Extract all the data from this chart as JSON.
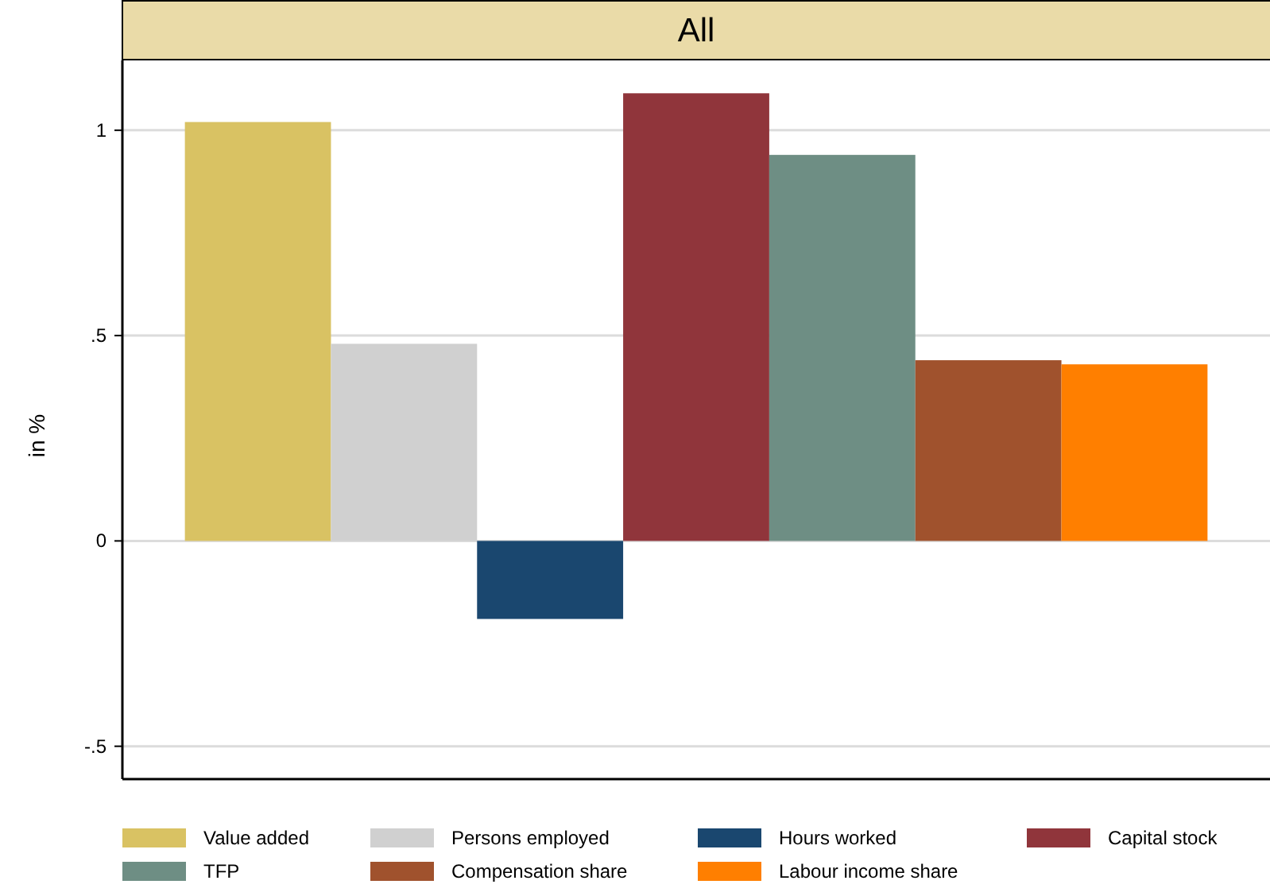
{
  "chart_data": {
    "type": "bar",
    "title": "All",
    "ylabel": "in %",
    "categories": [
      null
    ],
    "series": [
      {
        "name": "Value added",
        "color": "#d9c263",
        "values": [
          1.02
        ]
      },
      {
        "name": "Persons employed",
        "color": "#d0d0d0",
        "values": [
          0.48
        ]
      },
      {
        "name": "Hours worked",
        "color": "#1a476f",
        "values": [
          -0.19
        ]
      },
      {
        "name": "Capital stock",
        "color": "#90353b",
        "values": [
          1.09
        ]
      },
      {
        "name": "TFP",
        "color": "#6e8e84",
        "values": [
          0.94
        ]
      },
      {
        "name": "Compensation share",
        "color": "#a0522d",
        "values": [
          0.44
        ]
      },
      {
        "name": "Labour income share",
        "color": "#ff7f00",
        "values": [
          0.43
        ]
      }
    ],
    "ylim": [
      -0.58,
      1.17
    ],
    "yticks": [
      {
        "value": -0.5,
        "label": "-.5"
      },
      0,
      {
        "value": 0.5,
        "label": ".5"
      },
      1
    ],
    "grid": "y",
    "legend": "bottom"
  }
}
